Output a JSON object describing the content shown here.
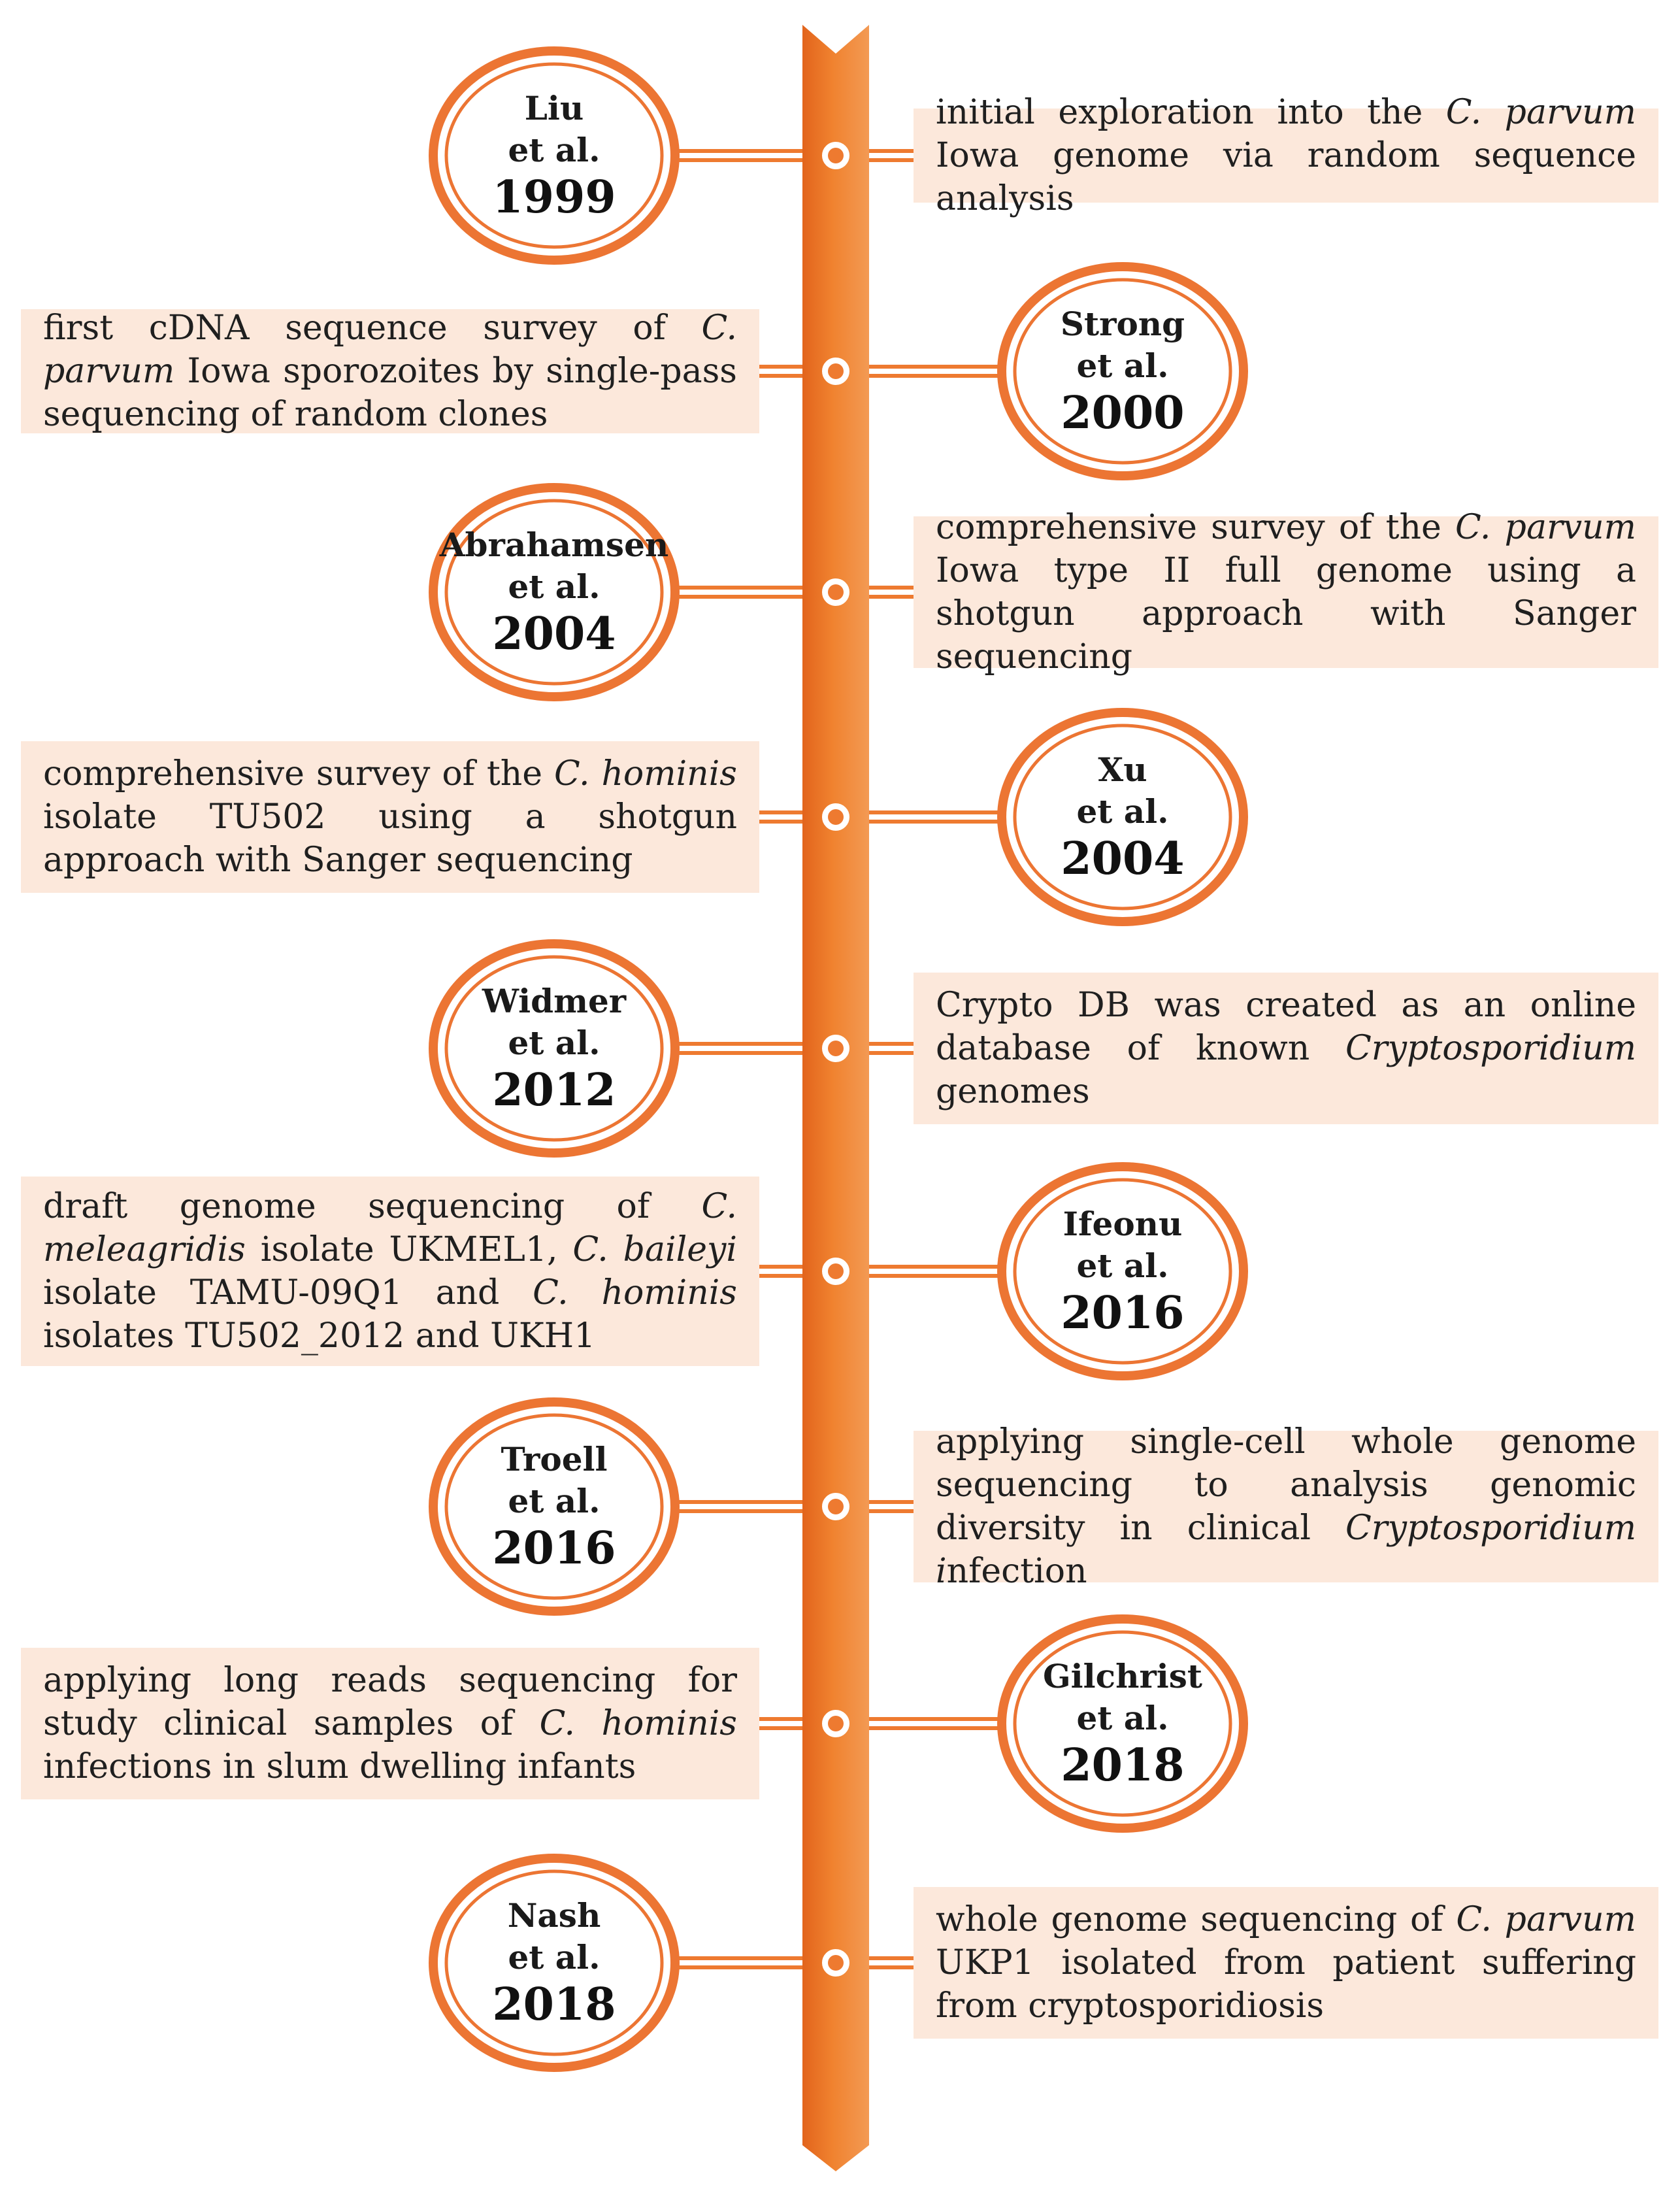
{
  "colors": {
    "spine": "#ee7a30",
    "spine_dark": "#e0641a",
    "ring": "#ec7533",
    "connector": "#ee7a30",
    "box_fill": "#fce8db"
  },
  "events": [
    {
      "name": "Liu",
      "etal": "et al.",
      "year": "1999",
      "side": "left",
      "text_html": "initial exploration into the <i>C. parvum</i> Iowa genome via random sequence analysis"
    },
    {
      "name": "Strong",
      "etal": "et al.",
      "year": "2000",
      "side": "right",
      "text_html": "first cDNA sequence survey of <i>C. parvum</i> Iowa sporozoites by single-pass sequencing of random clones"
    },
    {
      "name": "Abrahamsen",
      "etal": "et al.",
      "year": "2004",
      "side": "left",
      "text_html": "comprehensive survey of the <i>C. parvum</i> Iowa type II full genome using a shotgun approach with Sanger sequencing"
    },
    {
      "name": "Xu",
      "etal": "et al.",
      "year": "2004",
      "side": "right",
      "text_html": "comprehensive survey of the <i>C. hominis</i> isolate TU502 using a shotgun approach with Sanger sequencing"
    },
    {
      "name": "Widmer",
      "etal": "et al.",
      "year": "2012",
      "side": "left",
      "text_html": "Crypto DB was created as an online database of known <i>Cryptosporidium</i> genomes"
    },
    {
      "name": "Ifeonu",
      "etal": "et al.",
      "year": "2016",
      "side": "right",
      "text_html": "draft genome sequencing of <i>C. meleagridis</i> isolate UKMEL1, <i>C. baileyi</i> isolate TAMU-09Q1 and <i>C. hominis</i> isolates TU502_2012 and UKH1"
    },
    {
      "name": "Troell",
      "etal": "et al.",
      "year": "2016",
      "side": "left",
      "text_html": "applying single-cell whole genome sequencing to analysis genomic diversity in clinical <i>Cryptosporidium i</i>nfection"
    },
    {
      "name": "Gilchrist",
      "etal": "et al.",
      "year": "2018",
      "side": "right",
      "text_html": "applying long reads sequencing for study clinical samples of <i>C. hominis</i> infections in slum dwelling infants"
    },
    {
      "name": "Nash",
      "etal": "et al.",
      "year": "2018",
      "side": "left",
      "text_html": "whole genome sequencing of <i>C. parvum</i> UKP1 isolated from patient suffering from cryptosporidiosis"
    }
  ]
}
